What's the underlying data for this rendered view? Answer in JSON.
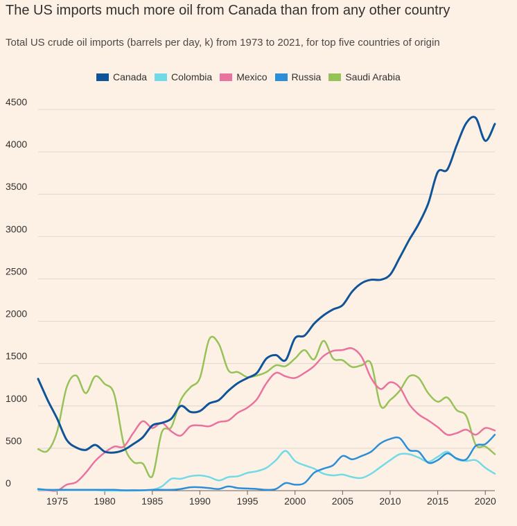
{
  "header": {
    "title": "The US imports much more oil from Canada than from any other country",
    "subtitle": "Total US crude oil imports (barrels per day, k) from 1973 to 2021, for top five countries of origin"
  },
  "chart_data": {
    "type": "line",
    "title": "The US imports much more oil from Canada than from any other country",
    "subtitle": "Total US crude oil imports (barrels per day, k) from 1973 to 2021, for top five countries of origin",
    "xlabel": "",
    "ylabel": "",
    "xlim": [
      1973,
      2021
    ],
    "ylim": [
      0,
      4500
    ],
    "x_ticks": [
      1975,
      1980,
      1985,
      1990,
      1995,
      2000,
      2005,
      2010,
      2015,
      2020
    ],
    "y_ticks": [
      0,
      500,
      1000,
      1500,
      2000,
      2500,
      3000,
      3500,
      4000,
      4500
    ],
    "grid": "horizontal",
    "legend_position": "top",
    "x": [
      1973,
      1974,
      1975,
      1976,
      1977,
      1978,
      1979,
      1980,
      1981,
      1982,
      1983,
      1984,
      1985,
      1986,
      1987,
      1988,
      1989,
      1990,
      1991,
      1992,
      1993,
      1994,
      1995,
      1996,
      1997,
      1998,
      1999,
      2000,
      2001,
      2002,
      2003,
      2004,
      2005,
      2006,
      2007,
      2008,
      2009,
      2010,
      2011,
      2012,
      2013,
      2014,
      2015,
      2016,
      2017,
      2018,
      2019,
      2020,
      2021
    ],
    "series": [
      {
        "name": "Canada",
        "color": "#0f5499",
        "values": [
          1320,
          1070,
          850,
          600,
          510,
          480,
          540,
          460,
          450,
          480,
          550,
          630,
          770,
          800,
          850,
          1000,
          930,
          940,
          1030,
          1070,
          1180,
          1270,
          1330,
          1390,
          1560,
          1600,
          1540,
          1800,
          1830,
          1970,
          2070,
          2140,
          2190,
          2350,
          2450,
          2490,
          2490,
          2550,
          2750,
          2960,
          3150,
          3390,
          3760,
          3790,
          4080,
          4340,
          4400,
          4130,
          4330
        ]
      },
      {
        "name": "Colombia",
        "color": "#72dae6",
        "values": [
          10,
          10,
          5,
          5,
          5,
          5,
          5,
          0,
          0,
          0,
          0,
          5,
          10,
          50,
          140,
          140,
          170,
          180,
          160,
          120,
          160,
          170,
          210,
          230,
          270,
          360,
          470,
          350,
          300,
          260,
          200,
          180,
          190,
          160,
          150,
          200,
          280,
          360,
          430,
          430,
          390,
          340,
          400,
          460,
          370,
          350,
          360,
          270,
          200
        ]
      },
      {
        "name": "Mexico",
        "color": "#e9739e",
        "values": [
          10,
          5,
          0,
          70,
          100,
          210,
          350,
          450,
          520,
          520,
          680,
          820,
          740,
          800,
          700,
          650,
          760,
          770,
          760,
          810,
          830,
          920,
          980,
          1080,
          1270,
          1390,
          1350,
          1330,
          1390,
          1470,
          1590,
          1650,
          1660,
          1680,
          1580,
          1330,
          1200,
          1280,
          1220,
          1020,
          900,
          830,
          750,
          660,
          680,
          720,
          660,
          740,
          710
        ]
      },
      {
        "name": "Russia",
        "color": "#2a8fd8",
        "values": [
          20,
          10,
          10,
          10,
          10,
          10,
          10,
          10,
          10,
          5,
          5,
          5,
          10,
          10,
          10,
          20,
          40,
          40,
          30,
          20,
          50,
          30,
          25,
          20,
          10,
          20,
          90,
          70,
          90,
          210,
          260,
          300,
          410,
          370,
          410,
          460,
          560,
          610,
          620,
          480,
          460,
          330,
          360,
          440,
          380,
          370,
          530,
          550,
          660
        ]
      },
      {
        "name": "Saudi Arabia",
        "color": "#96c257",
        "values": [
          490,
          470,
          700,
          1220,
          1360,
          1150,
          1350,
          1260,
          1140,
          550,
          340,
          320,
          170,
          690,
          750,
          1070,
          1220,
          1330,
          1790,
          1730,
          1420,
          1400,
          1340,
          1360,
          1400,
          1480,
          1470,
          1560,
          1660,
          1550,
          1770,
          1560,
          1540,
          1460,
          1480,
          1500,
          1000,
          1070,
          1180,
          1350,
          1330,
          1150,
          1050,
          1100,
          950,
          880,
          540,
          520,
          430
        ]
      }
    ]
  }
}
